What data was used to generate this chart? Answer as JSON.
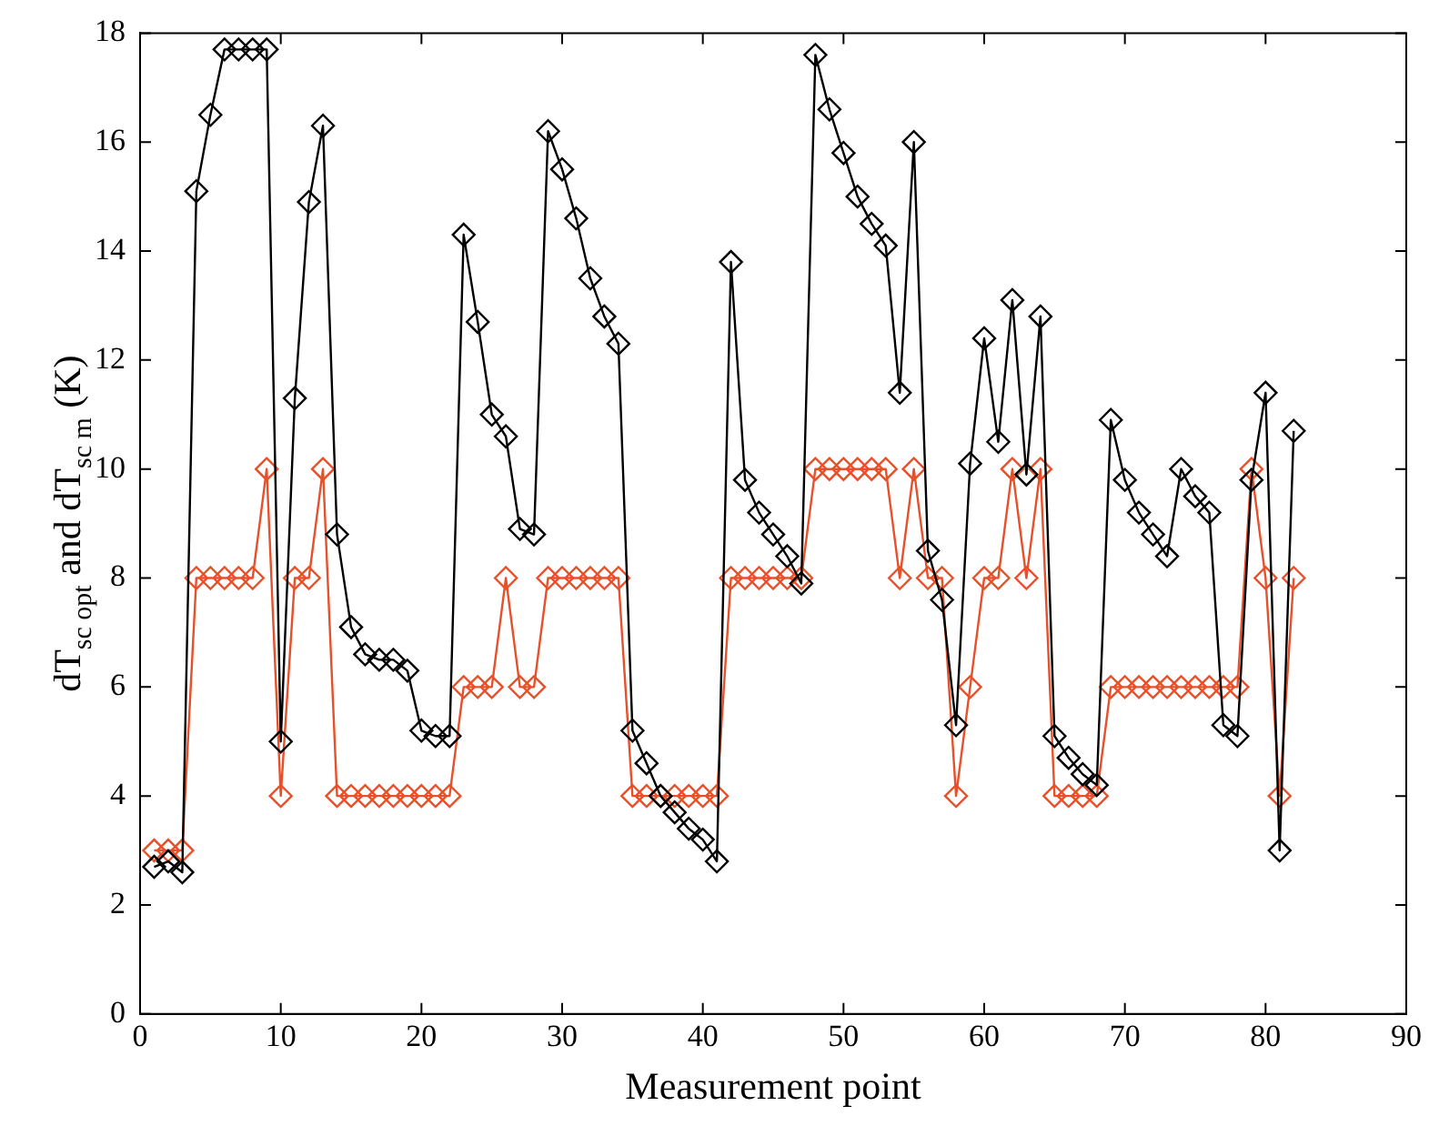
{
  "chart_data": {
    "type": "line",
    "xlabel": "Measurement point",
    "ylabel": "dT$_{sc opt}$ and dT$_{sc m}$ (K)",
    "x": [
      1,
      2,
      3,
      4,
      5,
      6,
      7,
      8,
      9,
      10,
      11,
      12,
      13,
      14,
      15,
      16,
      17,
      18,
      19,
      20,
      21,
      22,
      23,
      24,
      25,
      26,
      27,
      28,
      29,
      30,
      31,
      32,
      33,
      34,
      35,
      36,
      37,
      38,
      39,
      40,
      41,
      42,
      43,
      44,
      45,
      46,
      47,
      48,
      49,
      50,
      51,
      52,
      53,
      54,
      55,
      56,
      57,
      58,
      59,
      60,
      61,
      62,
      63,
      64,
      65,
      66,
      67,
      68,
      69,
      70,
      71,
      72,
      73,
      74,
      75,
      76,
      77,
      78,
      79,
      80,
      81,
      82
    ],
    "series": [
      {
        "color": "#e8502a",
        "values": [
          3,
          3,
          3,
          8,
          8,
          8,
          8,
          8,
          10,
          4,
          8,
          8,
          10,
          4,
          4,
          4,
          4,
          4,
          4,
          4,
          4,
          4,
          6,
          6,
          6,
          8,
          6,
          6,
          8,
          8,
          8,
          8,
          8,
          8,
          4,
          4,
          4,
          4,
          4,
          4,
          4,
          8,
          8,
          8,
          8,
          8,
          8,
          10,
          10,
          10,
          10,
          10,
          10,
          8,
          10,
          8,
          8,
          4,
          6,
          8,
          8,
          10,
          8,
          10,
          4,
          4,
          4,
          4,
          6,
          6,
          6,
          6,
          6,
          6,
          6,
          6,
          6,
          6,
          10,
          8,
          4,
          8
        ]
      },
      {
        "color": "#000000",
        "values": [
          2.7,
          2.8,
          2.6,
          15.1,
          16.5,
          17.7,
          17.7,
          17.7,
          17.7,
          5.0,
          11.3,
          14.9,
          16.3,
          8.8,
          7.1,
          6.6,
          6.5,
          6.5,
          6.3,
          5.2,
          5.1,
          5.1,
          14.3,
          12.7,
          11.0,
          10.6,
          8.9,
          8.8,
          16.2,
          15.5,
          14.6,
          13.5,
          12.8,
          12.3,
          5.2,
          4.6,
          4.0,
          3.7,
          3.4,
          3.2,
          2.8,
          13.8,
          9.8,
          9.2,
          8.8,
          8.4,
          7.9,
          17.6,
          16.6,
          15.8,
          15.0,
          14.5,
          14.1,
          11.4,
          16.0,
          8.5,
          7.6,
          5.3,
          10.1,
          12.4,
          10.5,
          13.1,
          9.9,
          12.8,
          5.1,
          4.7,
          4.4,
          4.2,
          10.9,
          9.8,
          9.2,
          8.8,
          8.4,
          10.0,
          9.5,
          9.2,
          5.3,
          5.1,
          9.8,
          11.4,
          3.0,
          10.7
        ]
      }
    ],
    "xlim": [
      0,
      90
    ],
    "xticks": [
      0,
      10,
      20,
      30,
      40,
      50,
      60,
      70,
      80,
      90
    ],
    "ylim": [
      0,
      18
    ],
    "yticks": [
      0,
      2,
      4,
      6,
      8,
      10,
      12,
      14,
      16,
      18
    ],
    "grid": false,
    "legend": false,
    "marker": "diamond",
    "line_style": "solid"
  }
}
